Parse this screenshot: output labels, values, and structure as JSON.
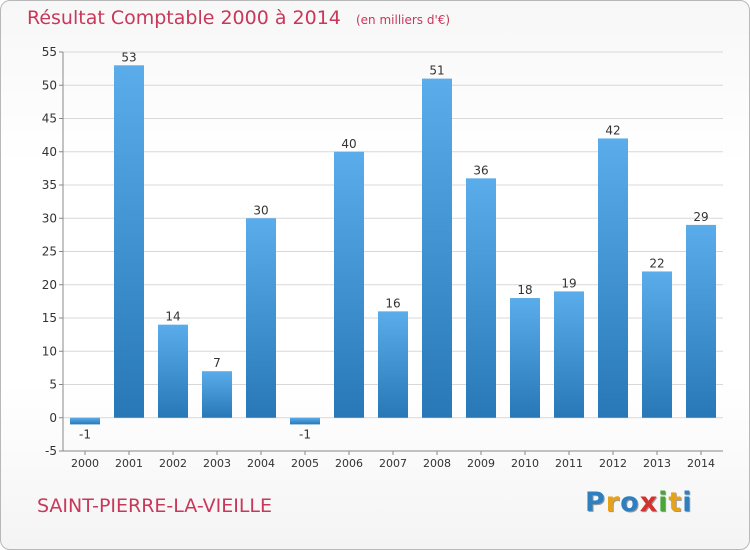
{
  "title": "Résultat Comptable 2000 à 2014",
  "unit": "(en milliers d'€)",
  "town": "SAINT-PIERRE-LA-VIEILLE",
  "logo": {
    "text": "Proxiti",
    "letters": [
      {
        "ch": "P",
        "color": "#2f7fc0"
      },
      {
        "ch": "r",
        "color": "#e8a21a"
      },
      {
        "ch": "o",
        "color": "#2f7fc0"
      },
      {
        "ch": "x",
        "color": "#d4322f"
      },
      {
        "ch": "i",
        "color": "#4aa63a"
      },
      {
        "ch": "t",
        "color": "#e8a21a"
      },
      {
        "ch": "i",
        "color": "#2f7fc0"
      }
    ]
  },
  "colors": {
    "bar_light": "#5aacea",
    "bar_dark": "#2878b8",
    "grid": "#d8d8d8",
    "axis": "#888888",
    "text": "#333333",
    "title": "#c8385a"
  },
  "chart_data": {
    "type": "bar",
    "categories": [
      "2000",
      "2001",
      "2002",
      "2003",
      "2004",
      "2005",
      "2006",
      "2007",
      "2008",
      "2009",
      "2010",
      "2011",
      "2012",
      "2013",
      "2014"
    ],
    "values": [
      -1,
      53,
      14,
      7,
      30,
      -1,
      40,
      16,
      51,
      36,
      18,
      19,
      42,
      22,
      29
    ],
    "title": "Résultat Comptable 2000 à 2014",
    "xlabel": "",
    "ylabel": "",
    "ylim": [
      -5,
      55
    ],
    "yticks": [
      -5,
      0,
      5,
      10,
      15,
      20,
      25,
      30,
      35,
      40,
      45,
      50,
      55
    ],
    "grid": true,
    "data_labels": true
  }
}
